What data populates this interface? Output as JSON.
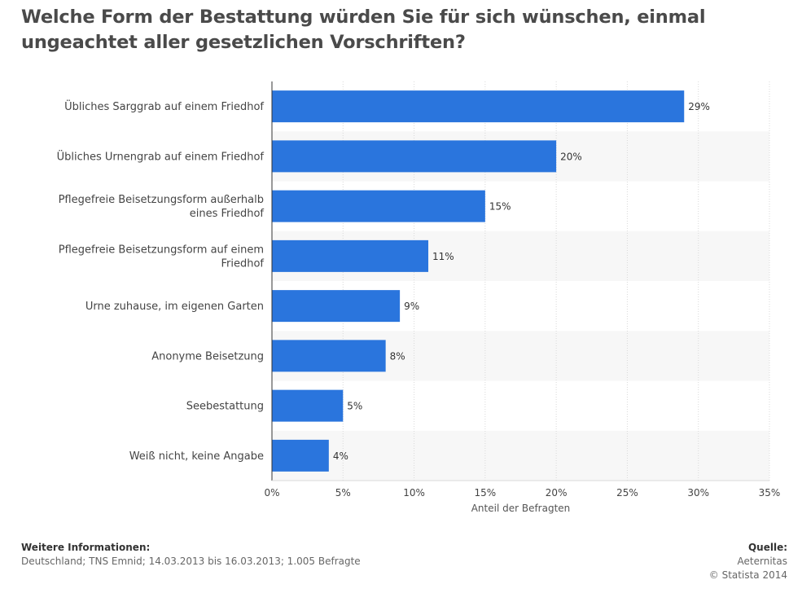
{
  "title": "Welche Form der Bestattung würden Sie für sich wünschen, einmal ungeachtet aller gesetzlichen Vorschriften?",
  "colors": {
    "bar": "#2a75dd",
    "stripe": "#f7f7f7",
    "grid": "#d9d9d9",
    "axis": "#333333"
  },
  "chart_data": {
    "type": "bar",
    "orientation": "horizontal",
    "categories": [
      "Übliches Sarggrab auf einem Friedhof",
      "Übliches Urnengrab auf einem Friedhof",
      "Pflegefreie Beisetzungsform außerhalb eines Friedhof",
      "Pflegefreie Beisetzungsform auf einem Friedhof",
      "Urne zuhause, im eigenen Garten",
      "Anonyme Beisetzung",
      "Seebestattung",
      "Weiß nicht, keine Angabe"
    ],
    "category_lines": [
      [
        "Übliches Sarggrab auf einem Friedhof"
      ],
      [
        "Übliches Urnengrab auf einem Friedhof"
      ],
      [
        "Pflegefreie Beisetzungsform außerhalb",
        "eines Friedhof"
      ],
      [
        "Pflegefreie Beisetzungsform auf einem",
        "Friedhof"
      ],
      [
        "Urne zuhause, im eigenen Garten"
      ],
      [
        "Anonyme Beisetzung"
      ],
      [
        "Seebestattung"
      ],
      [
        "Weiß nicht, keine Angabe"
      ]
    ],
    "values": [
      29,
      20,
      15,
      11,
      9,
      8,
      5,
      4
    ],
    "value_labels": [
      "29%",
      "20%",
      "15%",
      "11%",
      "9%",
      "8%",
      "5%",
      "4%"
    ],
    "xlabel": "Anteil der Befragten",
    "xlim": [
      0,
      35
    ],
    "xticks": [
      0,
      5,
      10,
      15,
      20,
      25,
      30,
      35
    ],
    "xtick_labels": [
      "0%",
      "5%",
      "10%",
      "15%",
      "20%",
      "25%",
      "30%",
      "35%"
    ],
    "grid": true
  },
  "footer": {
    "info_heading": "Weitere Informationen:",
    "info_text": "Deutschland; TNS Emnid; 14.03.2013 bis 16.03.2013; 1.005 Befragte",
    "source_heading": "Quelle:",
    "source_text": "Aeternitas",
    "copyright": "© Statista 2014"
  }
}
